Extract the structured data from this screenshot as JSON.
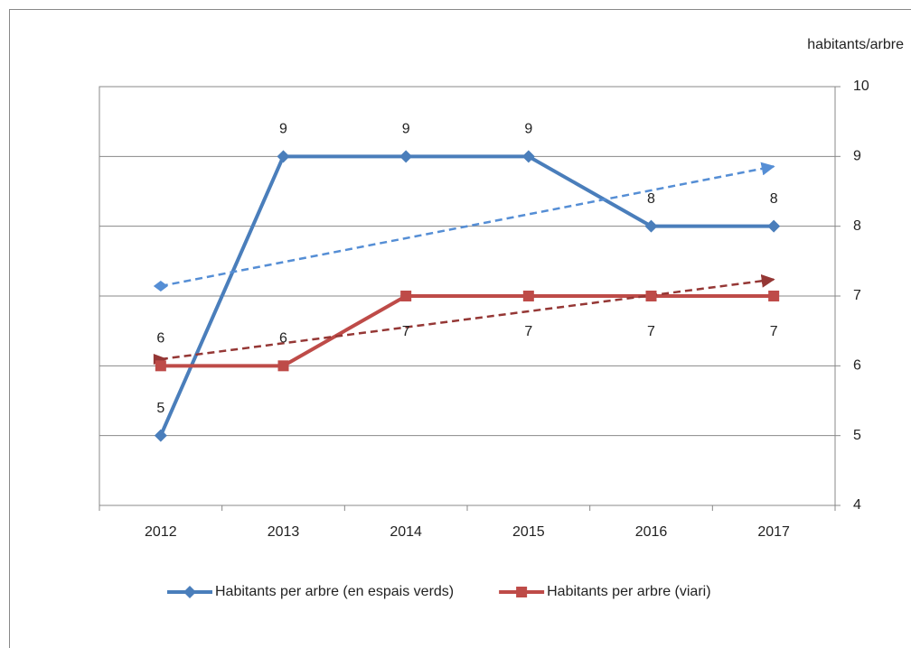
{
  "chart_data": {
    "type": "line",
    "y_axis_title": "habitants/arbre",
    "y_axis_side": "right",
    "categories": [
      "2012",
      "2013",
      "2014",
      "2015",
      "2016",
      "2017"
    ],
    "series": [
      {
        "name": "Habitants per arbre (en espais verds)",
        "color": "#4a7ebb",
        "marker": "diamond",
        "values": [
          5,
          9,
          9,
          9,
          8,
          8
        ],
        "trendline": {
          "type": "linear",
          "color": "#558ed5",
          "style": "dashed"
        }
      },
      {
        "name": "Habitants per arbre (viari)",
        "color": "#be4b48",
        "marker": "square",
        "values": [
          6,
          6,
          7,
          7,
          7,
          7
        ],
        "trendline": {
          "type": "linear",
          "color": "#953735",
          "style": "dashed"
        }
      }
    ],
    "ylim": [
      4,
      10
    ],
    "yticks": [
      4,
      5,
      6,
      7,
      8,
      9,
      10
    ],
    "grid": true,
    "legend": "bottom",
    "data_labels": true
  }
}
